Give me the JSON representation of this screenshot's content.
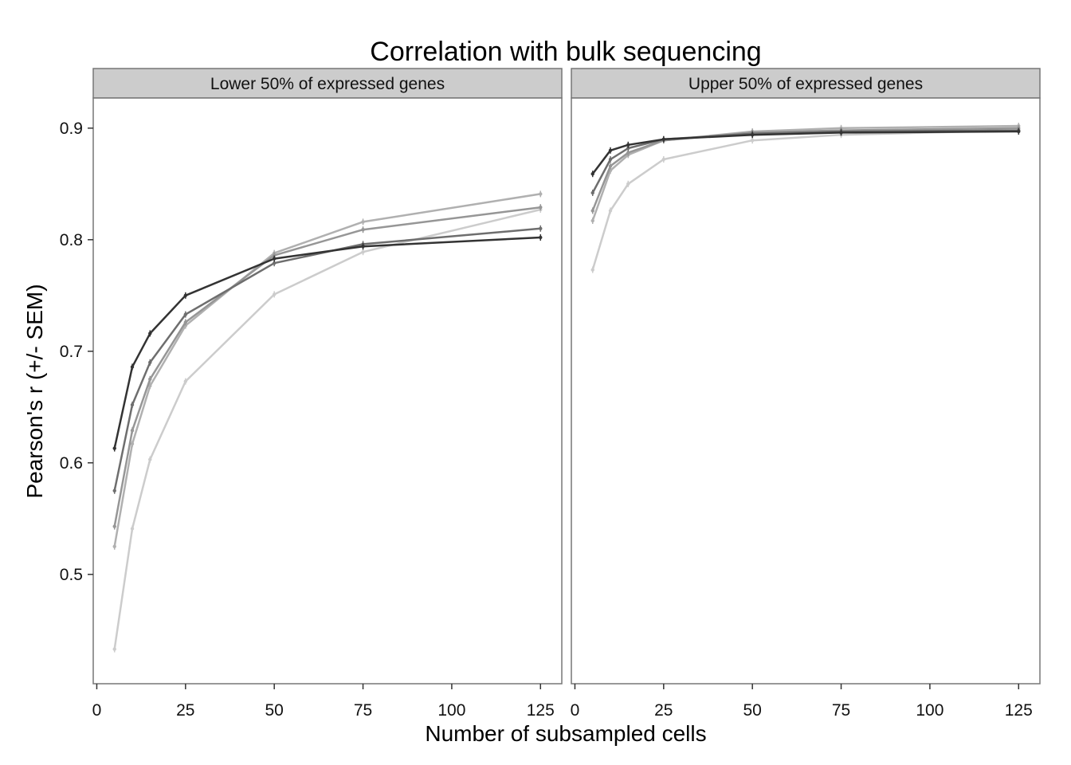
{
  "chart_data": {
    "type": "line",
    "title": "Correlation with bulk sequencing",
    "xlabel": "Number of subsampled cells",
    "ylabel": "Pearson's r (+/- SEM)",
    "x": [
      5,
      10,
      15,
      25,
      50,
      75,
      125
    ],
    "xticks": [
      0,
      25,
      50,
      75,
      100,
      125
    ],
    "xlim": [
      -1,
      131
    ],
    "ylim": [
      0.402,
      0.927
    ],
    "yticks": [
      0.5,
      0.6,
      0.7,
      0.8,
      0.9
    ],
    "ytick_labels": [
      "0.5",
      "0.6",
      "0.7",
      "0.8",
      "0.9"
    ],
    "grid": false,
    "facets": [
      {
        "label": "Lower 50% of expressed genes",
        "series": [
          {
            "color": "#cccccc",
            "values": [
              0.433,
              0.541,
              0.603,
              0.673,
              0.751,
              0.789,
              0.827
            ]
          },
          {
            "color": "#b0b0b0",
            "values": [
              0.525,
              0.617,
              0.669,
              0.723,
              0.788,
              0.816,
              0.841
            ]
          },
          {
            "color": "#969696",
            "values": [
              0.543,
              0.629,
              0.675,
              0.726,
              0.786,
              0.809,
              0.829
            ]
          },
          {
            "color": "#6e6e6e",
            "values": [
              0.575,
              0.652,
              0.69,
              0.733,
              0.779,
              0.796,
              0.81
            ]
          },
          {
            "color": "#333333",
            "values": [
              0.613,
              0.686,
              0.716,
              0.75,
              0.783,
              0.794,
              0.802
            ]
          }
        ]
      },
      {
        "label": "Upper 50% of expressed genes",
        "series": [
          {
            "color": "#cccccc",
            "values": [
              0.773,
              0.826,
              0.85,
              0.872,
              0.889,
              0.894,
              0.898
            ]
          },
          {
            "color": "#b0b0b0",
            "values": [
              0.817,
              0.862,
              0.876,
              0.889,
              0.897,
              0.9,
              0.902
            ]
          },
          {
            "color": "#969696",
            "values": [
              0.826,
              0.866,
              0.878,
              0.889,
              0.896,
              0.898,
              0.9
            ]
          },
          {
            "color": "#6e6e6e",
            "values": [
              0.842,
              0.872,
              0.882,
              0.89,
              0.895,
              0.897,
              0.898
            ]
          },
          {
            "color": "#333333",
            "values": [
              0.859,
              0.88,
              0.885,
              0.89,
              0.894,
              0.896,
              0.897
            ]
          }
        ]
      }
    ]
  }
}
